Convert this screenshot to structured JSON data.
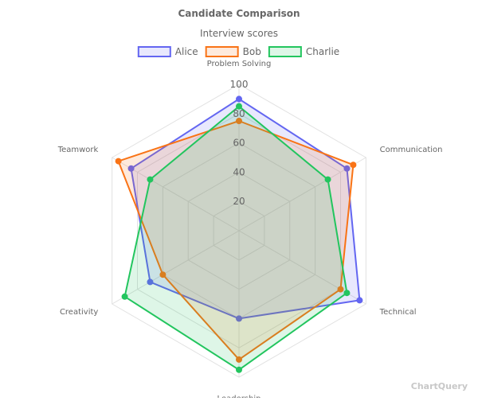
{
  "chart_data": {
    "type": "radar",
    "title": "Candidate Comparison",
    "subtitle": "Interview scores",
    "axes": [
      "Problem Solving",
      "Communication",
      "Technical",
      "Leadership",
      "Creativity",
      "Teamwork"
    ],
    "rlim": [
      0,
      100
    ],
    "ticks": [
      20,
      40,
      60,
      80,
      100
    ],
    "grid": true,
    "legend_position": "top",
    "series": [
      {
        "name": "Alice",
        "values": [
          90,
          85,
          95,
          60,
          70,
          85
        ],
        "color": "#6366f1"
      },
      {
        "name": "Bob",
        "values": [
          75,
          90,
          80,
          88,
          60,
          95
        ],
        "color": "#f97316"
      },
      {
        "name": "Charlie",
        "values": [
          85,
          70,
          85,
          95,
          90,
          70
        ],
        "color": "#22c55e"
      }
    ]
  },
  "watermark": "ChartQuery"
}
